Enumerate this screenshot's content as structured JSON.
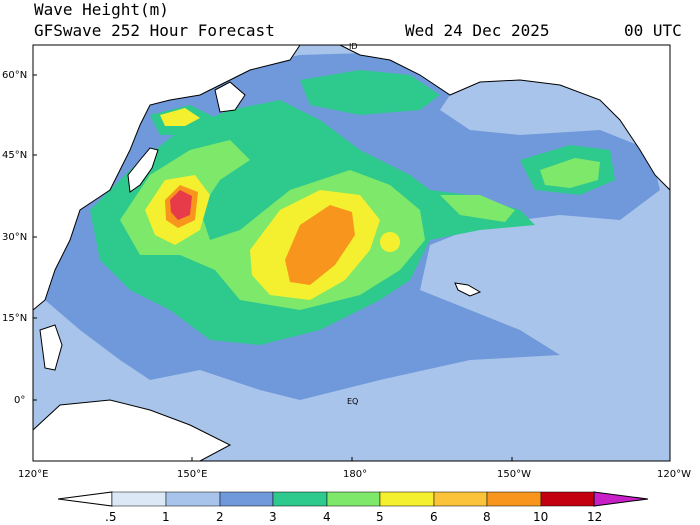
{
  "header": {
    "title": "Wave Height(m)",
    "subtitle": "GFSwave 252 Hour Forecast",
    "date": "Wed 24 Dec 2025",
    "time": "00 UTC"
  },
  "axes": {
    "lat_labels": [
      "60°N",
      "45°N",
      "30°N",
      "15°N",
      "0°"
    ],
    "lon_labels": [
      "120°E",
      "150°E",
      "180°",
      "150°W",
      "120°W"
    ],
    "map_labels": {
      "equator": "EQ",
      "dateline": "ID"
    }
  },
  "legend": {
    "ticks": [
      ".5",
      "1",
      "2",
      "3",
      "4",
      "5",
      "6",
      "8",
      "10",
      "12"
    ],
    "colors": [
      "#ffffff",
      "#dce8f5",
      "#a9c4ea",
      "#6f99da",
      "#2ec98c",
      "#7ee86b",
      "#f5f02f",
      "#fbc33a",
      "#f7951c",
      "#e83b4a",
      "#c20010",
      "#c81fc6"
    ]
  },
  "colors": {
    "ocean_base": "#a9c4ea",
    "land": "#ffffff",
    "coast": "#000000"
  }
}
